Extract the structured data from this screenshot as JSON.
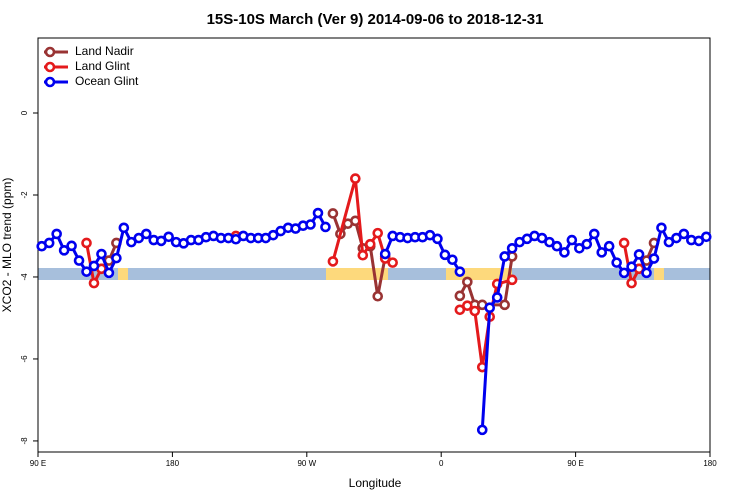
{
  "chart_data": {
    "type": "line",
    "title": "15S-10S March (Ver 9)   2014-09-06 to 2018-12-31",
    "x_label": "Longitude",
    "y_label": "XCO2 - MLO trend (ppm)",
    "xlim": [
      90,
      540
    ],
    "ylim": [
      -8.27,
      1.83
    ],
    "xticks": [
      {
        "value": 90,
        "label": "90 E"
      },
      {
        "value": 180,
        "label": "180"
      },
      {
        "value": 270,
        "label": "90 W"
      },
      {
        "value": 360,
        "label": "0"
      },
      {
        "value": 450,
        "label": "90 E"
      },
      {
        "value": 540,
        "label": "180"
      }
    ],
    "yticks": [
      0,
      -2,
      -4,
      -6,
      -8
    ],
    "legend": "top-left",
    "series": [
      {
        "name": "Land Nadir",
        "color": "#993333",
        "x": [
          132.5,
          137.5,
          142.5,
          null,
          287.5,
          292.5,
          297.5,
          302.5,
          307.5,
          312.5,
          317.5,
          322.5,
          null,
          372.5,
          377.5,
          382.5,
          387.5,
          402.5,
          407.5,
          null,
          492.5,
          497.5,
          502.5
        ],
        "values": [
          -3.8,
          -3.6,
          -3.17,
          null,
          -2.45,
          -2.95,
          -2.7,
          -2.63,
          -3.3,
          -3.25,
          -4.47,
          -3.5,
          null,
          -4.46,
          -4.12,
          -4.68,
          -4.68,
          -4.68,
          -3.5,
          null,
          -3.8,
          -3.6,
          -3.17
        ]
      },
      {
        "name": "Land Glint",
        "color": "#e41a1c",
        "x": [
          122.5,
          127.5,
          132.5,
          null,
          222.5,
          null,
          287.5,
          302.5,
          307.5,
          312.5,
          317.5,
          322.5,
          327.5,
          null,
          372.5,
          377.5,
          382.5,
          387.5,
          392.5,
          397.5,
          407.5,
          null,
          482.5,
          487.5,
          492.5
        ],
        "values": [
          -3.17,
          -4.15,
          -3.8,
          null,
          -3.0,
          null,
          -3.62,
          -1.6,
          -3.47,
          -3.2,
          -2.93,
          -3.55,
          -3.65,
          null,
          -4.8,
          -4.7,
          -4.83,
          -6.2,
          -4.97,
          -4.17,
          -4.07,
          null,
          -3.17,
          -4.15,
          -3.8
        ]
      },
      {
        "name": "Ocean Glint",
        "color": "#0000ee",
        "x": [
          92.5,
          97.5,
          102.5,
          107.5,
          112.5,
          117.5,
          122.5,
          127.5,
          132.5,
          137.5,
          142.5,
          147.5,
          152.5,
          157.5,
          162.5,
          167.5,
          172.5,
          177.5,
          182.5,
          187.5,
          192.5,
          197.5,
          202.5,
          207.5,
          212.5,
          217.5,
          222.5,
          227.5,
          232.5,
          237.5,
          242.5,
          247.5,
          252.5,
          257.5,
          262.5,
          267.5,
          272.5,
          277.5,
          282.5,
          null,
          322.5,
          327.5,
          332.5,
          337.5,
          342.5,
          347.5,
          352.5,
          357.5,
          362.5,
          367.5,
          372.5,
          null,
          387.5,
          392.5,
          397.5,
          402.5,
          407.5,
          412.5,
          417.5,
          422.5,
          427.5,
          432.5,
          437.5,
          442.5,
          447.5,
          452.5,
          457.5,
          462.5,
          467.5,
          472.5,
          477.5,
          482.5,
          487.5,
          492.5,
          497.5,
          502.5,
          507.5,
          512.5,
          517.5,
          522.5,
          527.5,
          532.5,
          537.5
        ],
        "values": [
          -3.25,
          -3.17,
          -2.95,
          -3.35,
          -3.24,
          -3.6,
          -3.87,
          -3.73,
          -3.44,
          -3.9,
          -3.54,
          -2.8,
          -3.15,
          -3.05,
          -2.95,
          -3.1,
          -3.12,
          -3.02,
          -3.15,
          -3.18,
          -3.1,
          -3.1,
          -3.03,
          -3.0,
          -3.05,
          -3.05,
          -3.08,
          -3.0,
          -3.05,
          -3.05,
          -3.05,
          -2.98,
          -2.88,
          -2.8,
          -2.82,
          -2.75,
          -2.72,
          -2.44,
          -2.78,
          null,
          -3.44,
          -3.0,
          -3.03,
          -3.05,
          -3.03,
          -3.03,
          -2.98,
          -3.07,
          -3.46,
          -3.58,
          -3.87,
          null,
          -7.73,
          -4.75,
          -4.5,
          -3.5,
          -3.3,
          -3.15,
          -3.07,
          -3.0,
          -3.05,
          -3.15,
          -3.25,
          -3.4,
          -3.1,
          -3.3,
          -3.2,
          -2.95,
          -3.4,
          -3.25,
          -3.65,
          -3.9,
          -3.75,
          -3.45,
          -3.9,
          -3.55,
          -2.8,
          -3.15,
          -3.05,
          -2.95,
          -3.1,
          -3.12,
          -3.02
        ]
      }
    ]
  }
}
